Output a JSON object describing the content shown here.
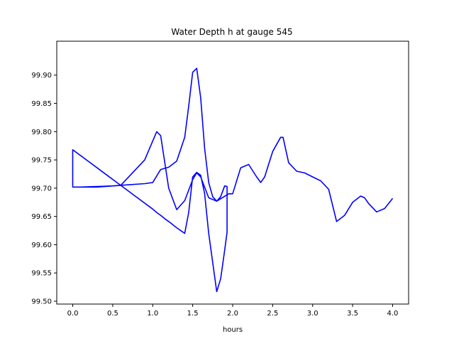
{
  "chart_data": {
    "type": "line",
    "title": "Water Depth h at gauge 545",
    "xlabel": "hours",
    "ylabel": "",
    "xlim": [
      -0.2,
      4.2
    ],
    "ylim": [
      99.495,
      99.96
    ],
    "grid": false,
    "legend": "none",
    "x_ticks": [
      {
        "value": 0.0,
        "label": "0.0"
      },
      {
        "value": 0.5,
        "label": "0.5"
      },
      {
        "value": 1.0,
        "label": "1.0"
      },
      {
        "value": 1.5,
        "label": "1.5"
      },
      {
        "value": 2.0,
        "label": "2.0"
      },
      {
        "value": 2.5,
        "label": "2.5"
      },
      {
        "value": 3.0,
        "label": "3.0"
      },
      {
        "value": 3.5,
        "label": "3.5"
      },
      {
        "value": 4.0,
        "label": "4.0"
      }
    ],
    "y_ticks": [
      {
        "value": 99.5,
        "label": "99.50"
      },
      {
        "value": 99.55,
        "label": "99.55"
      },
      {
        "value": 99.6,
        "label": "99.60"
      },
      {
        "value": 99.65,
        "label": "99.65"
      },
      {
        "value": 99.7,
        "label": "99.70"
      },
      {
        "value": 99.75,
        "label": "99.75"
      },
      {
        "value": 99.8,
        "label": "99.80"
      },
      {
        "value": 99.85,
        "label": "99.85"
      },
      {
        "value": 99.9,
        "label": "99.90"
      }
    ],
    "series": [
      {
        "color": "#0000ff",
        "x": [
          0.0,
          0.0,
          0.2,
          0.4,
          0.6,
          0.8,
          1.0,
          1.05,
          1.1,
          1.15,
          1.2,
          1.3,
          1.4,
          1.45,
          1.5,
          1.55,
          1.6,
          1.65,
          1.7,
          1.8,
          1.85,
          1.9,
          1.93,
          1.93,
          1.9,
          1.85,
          1.8,
          1.75,
          1.7,
          1.65,
          1.6,
          1.55,
          1.5,
          1.45,
          1.4,
          1.3,
          1.2,
          1.1,
          1.0,
          0.9,
          0.7,
          0.5,
          0.3,
          0.1,
          0.0,
          0.0,
          0.3,
          0.6,
          0.9,
          1.05,
          1.1,
          1.2,
          1.3,
          1.4,
          1.5,
          1.55,
          1.6,
          1.7,
          1.8,
          1.95,
          2.0,
          2.1,
          2.2,
          2.3,
          2.35,
          2.4,
          2.5,
          2.6,
          2.63,
          2.7,
          2.8,
          2.9,
          3.0,
          3.1,
          3.2,
          3.3,
          3.4,
          3.5,
          3.6,
          3.65,
          3.7,
          3.8,
          3.9,
          4.0
        ],
        "values": [
          99.703,
          99.768,
          99.747,
          99.726,
          99.705,
          99.684,
          99.663,
          99.657,
          99.652,
          99.646,
          99.641,
          99.63,
          99.62,
          99.657,
          99.72,
          99.728,
          99.723,
          99.69,
          99.62,
          99.517,
          99.54,
          99.59,
          99.622,
          99.703,
          99.704,
          99.685,
          99.677,
          99.685,
          99.71,
          99.77,
          99.86,
          99.912,
          99.905,
          99.845,
          99.79,
          99.748,
          99.737,
          99.733,
          99.71,
          99.708,
          99.706,
          99.704,
          99.703,
          99.702,
          99.702,
          99.702,
          99.702,
          99.705,
          99.75,
          99.8,
          99.793,
          99.7,
          99.662,
          99.678,
          99.715,
          99.727,
          99.72,
          99.683,
          99.677,
          99.69,
          99.69,
          99.736,
          99.742,
          99.72,
          99.71,
          99.72,
          99.765,
          99.79,
          99.79,
          99.745,
          99.73,
          99.727,
          99.72,
          99.713,
          99.698,
          99.641,
          99.652,
          99.675,
          99.686,
          99.683,
          99.673,
          99.658,
          99.664,
          99.682
        ]
      }
    ]
  }
}
